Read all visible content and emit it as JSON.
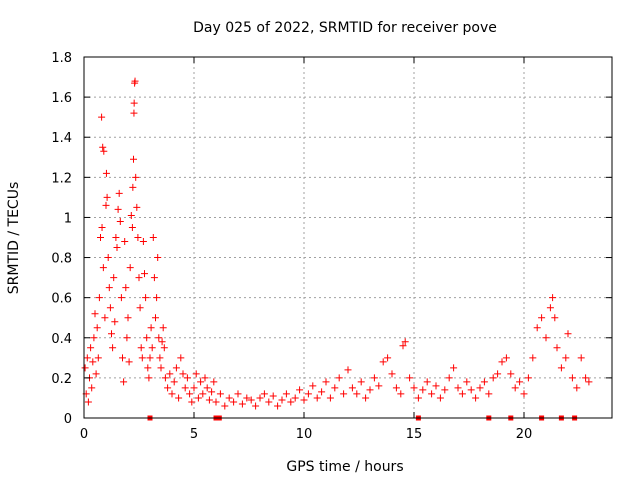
{
  "chart_data": {
    "type": "scatter",
    "title": "Day 025 of 2022, SRMTID for receiver pove",
    "xlabel": "GPS time / hours",
    "ylabel": "SRMTID / TECUs",
    "xlim": [
      0,
      24
    ],
    "ylim": [
      0,
      1.8
    ],
    "xticks": [
      0,
      5,
      10,
      15,
      20
    ],
    "xtick_labels": [
      "0",
      "5",
      "10",
      "15",
      "20"
    ],
    "yticks": [
      0,
      0.2,
      0.4,
      0.6,
      0.8,
      1,
      1.2,
      1.4,
      1.6,
      1.8
    ],
    "ytick_labels": [
      "0",
      "0.2",
      "0.4",
      "0.6",
      "0.8",
      "1",
      "1.2",
      "1.4",
      "1.6",
      "1.8"
    ],
    "grid": true,
    "marker": "+",
    "series": [
      {
        "name": "SRMTID",
        "color": "#ff0000",
        "points": [
          [
            0.05,
            0.25
          ],
          [
            0.1,
            0.12
          ],
          [
            0.15,
            0.3
          ],
          [
            0.2,
            0.08
          ],
          [
            0.25,
            0.2
          ],
          [
            0.3,
            0.35
          ],
          [
            0.35,
            0.15
          ],
          [
            0.4,
            0.28
          ],
          [
            0.45,
            0.4
          ],
          [
            0.5,
            0.52
          ],
          [
            0.55,
            0.22
          ],
          [
            0.6,
            0.45
          ],
          [
            0.65,
            0.3
          ],
          [
            0.7,
            0.6
          ],
          [
            0.75,
            0.9
          ],
          [
            0.8,
            1.5
          ],
          [
            0.82,
            0.95
          ],
          [
            0.85,
            1.35
          ],
          [
            0.88,
            0.75
          ],
          [
            0.9,
            1.33
          ],
          [
            0.95,
            0.5
          ],
          [
            1.0,
            1.06
          ],
          [
            1.02,
            1.22
          ],
          [
            1.05,
            1.1
          ],
          [
            1.1,
            0.8
          ],
          [
            1.15,
            0.65
          ],
          [
            1.2,
            0.55
          ],
          [
            1.25,
            0.42
          ],
          [
            1.3,
            0.35
          ],
          [
            1.35,
            0.7
          ],
          [
            1.4,
            0.48
          ],
          [
            1.45,
            0.9
          ],
          [
            1.5,
            0.85
          ],
          [
            1.55,
            1.04
          ],
          [
            1.6,
            1.12
          ],
          [
            1.65,
            0.98
          ],
          [
            1.7,
            0.6
          ],
          [
            1.75,
            0.3
          ],
          [
            1.8,
            0.18
          ],
          [
            1.85,
            0.88
          ],
          [
            1.9,
            0.65
          ],
          [
            1.95,
            0.4
          ],
          [
            2.0,
            0.5
          ],
          [
            2.05,
            0.28
          ],
          [
            2.1,
            0.75
          ],
          [
            2.15,
            1.01
          ],
          [
            2.2,
            0.95
          ],
          [
            2.22,
            1.15
          ],
          [
            2.25,
            1.29
          ],
          [
            2.27,
            1.52
          ],
          [
            2.28,
            1.57
          ],
          [
            2.3,
            1.67
          ],
          [
            2.32,
            1.68
          ],
          [
            2.35,
            1.2
          ],
          [
            2.4,
            1.05
          ],
          [
            2.45,
            0.9
          ],
          [
            2.5,
            0.7
          ],
          [
            2.55,
            0.55
          ],
          [
            2.6,
            0.35
          ],
          [
            2.65,
            0.3
          ],
          [
            2.7,
            0.88
          ],
          [
            2.75,
            0.72
          ],
          [
            2.8,
            0.6
          ],
          [
            2.85,
            0.4
          ],
          [
            2.9,
            0.25
          ],
          [
            2.95,
            0.2
          ],
          [
            3.0,
            0.3
          ],
          [
            3.05,
            0.45
          ],
          [
            3.1,
            0.35
          ],
          [
            3.15,
            0.9
          ],
          [
            3.2,
            0.7
          ],
          [
            3.25,
            0.5
          ],
          [
            3.3,
            0.6
          ],
          [
            3.35,
            0.8
          ],
          [
            3.4,
            0.4
          ],
          [
            3.45,
            0.3
          ],
          [
            3.5,
            0.25
          ],
          [
            3.55,
            0.38
          ],
          [
            3.6,
            0.45
          ],
          [
            3.65,
            0.35
          ],
          [
            3.7,
            0.2
          ],
          [
            3.8,
            0.15
          ],
          [
            3.9,
            0.22
          ],
          [
            4.0,
            0.12
          ],
          [
            4.1,
            0.18
          ],
          [
            4.2,
            0.25
          ],
          [
            4.3,
            0.1
          ],
          [
            4.4,
            0.3
          ],
          [
            4.5,
            0.22
          ],
          [
            4.6,
            0.15
          ],
          [
            4.7,
            0.2
          ],
          [
            4.8,
            0.12
          ],
          [
            4.9,
            0.08
          ],
          [
            5.0,
            0.15
          ],
          [
            5.1,
            0.22
          ],
          [
            5.2,
            0.1
          ],
          [
            5.3,
            0.18
          ],
          [
            5.4,
            0.12
          ],
          [
            5.5,
            0.2
          ],
          [
            5.6,
            0.15
          ],
          [
            5.7,
            0.09
          ],
          [
            5.8,
            0.13
          ],
          [
            5.9,
            0.18
          ],
          [
            6.0,
            0.08
          ],
          [
            6.2,
            0.12
          ],
          [
            6.4,
            0.06
          ],
          [
            6.6,
            0.1
          ],
          [
            6.8,
            0.08
          ],
          [
            7.0,
            0.12
          ],
          [
            7.2,
            0.07
          ],
          [
            7.4,
            0.1
          ],
          [
            7.6,
            0.09
          ],
          [
            7.8,
            0.06
          ],
          [
            8.0,
            0.1
          ],
          [
            8.2,
            0.12
          ],
          [
            8.4,
            0.08
          ],
          [
            8.6,
            0.11
          ],
          [
            8.8,
            0.06
          ],
          [
            9.0,
            0.09
          ],
          [
            9.2,
            0.12
          ],
          [
            9.4,
            0.08
          ],
          [
            9.6,
            0.1
          ],
          [
            9.8,
            0.14
          ],
          [
            10.0,
            0.09
          ],
          [
            10.2,
            0.12
          ],
          [
            10.4,
            0.16
          ],
          [
            10.6,
            0.1
          ],
          [
            10.8,
            0.13
          ],
          [
            11.0,
            0.18
          ],
          [
            11.2,
            0.1
          ],
          [
            11.4,
            0.15
          ],
          [
            11.6,
            0.2
          ],
          [
            11.8,
            0.12
          ],
          [
            12.0,
            0.24
          ],
          [
            12.2,
            0.15
          ],
          [
            12.4,
            0.12
          ],
          [
            12.6,
            0.18
          ],
          [
            12.8,
            0.1
          ],
          [
            13.0,
            0.14
          ],
          [
            13.2,
            0.2
          ],
          [
            13.4,
            0.16
          ],
          [
            13.6,
            0.28
          ],
          [
            13.8,
            0.3
          ],
          [
            14.0,
            0.22
          ],
          [
            14.2,
            0.15
          ],
          [
            14.4,
            0.12
          ],
          [
            14.5,
            0.36
          ],
          [
            14.6,
            0.38
          ],
          [
            14.8,
            0.2
          ],
          [
            15.0,
            0.15
          ],
          [
            15.2,
            0.1
          ],
          [
            15.4,
            0.14
          ],
          [
            15.6,
            0.18
          ],
          [
            15.8,
            0.12
          ],
          [
            16.0,
            0.16
          ],
          [
            16.2,
            0.1
          ],
          [
            16.4,
            0.14
          ],
          [
            16.6,
            0.2
          ],
          [
            16.8,
            0.25
          ],
          [
            17.0,
            0.15
          ],
          [
            17.2,
            0.12
          ],
          [
            17.4,
            0.18
          ],
          [
            17.6,
            0.14
          ],
          [
            17.8,
            0.1
          ],
          [
            18.0,
            0.15
          ],
          [
            18.2,
            0.18
          ],
          [
            18.4,
            0.12
          ],
          [
            18.6,
            0.2
          ],
          [
            18.8,
            0.22
          ],
          [
            19.0,
            0.28
          ],
          [
            19.2,
            0.3
          ],
          [
            19.4,
            0.22
          ],
          [
            19.6,
            0.15
          ],
          [
            19.8,
            0.18
          ],
          [
            20.0,
            0.12
          ],
          [
            20.2,
            0.2
          ],
          [
            20.4,
            0.3
          ],
          [
            20.6,
            0.45
          ],
          [
            20.8,
            0.5
          ],
          [
            21.0,
            0.4
          ],
          [
            21.2,
            0.55
          ],
          [
            21.3,
            0.6
          ],
          [
            21.4,
            0.5
          ],
          [
            21.5,
            0.35
          ],
          [
            21.7,
            0.25
          ],
          [
            21.9,
            0.3
          ],
          [
            22.0,
            0.42
          ],
          [
            22.2,
            0.2
          ],
          [
            22.4,
            0.15
          ],
          [
            22.6,
            0.3
          ],
          [
            22.8,
            0.2
          ],
          [
            22.95,
            0.18
          ]
        ]
      }
    ],
    "zero_markers_x": [
      3.0,
      6.0,
      6.1,
      6.15,
      15.2,
      18.4,
      19.4,
      20.8,
      21.7,
      22.3
    ]
  }
}
